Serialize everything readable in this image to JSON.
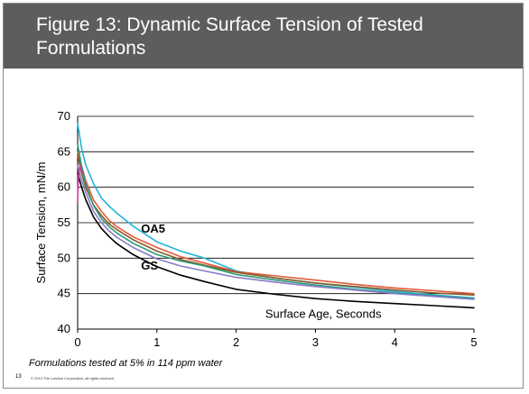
{
  "slide": {
    "title": "Figure 13: Dynamic Surface Tension of Tested Formulations",
    "footnote": "Formulations tested at 5% in 114 ppm water",
    "page_number": "13",
    "copyright": "© 2013 The Lubrizol Corporation, all rights reserved."
  },
  "chart_data": {
    "type": "line",
    "title": "",
    "xlabel": "Surface Age, Seconds",
    "ylabel": "Surface Tension, mN/m",
    "xlim": [
      0,
      5
    ],
    "ylim": [
      40,
      70
    ],
    "xticks": [
      0,
      1,
      2,
      3,
      4,
      5
    ],
    "yticks": [
      40,
      45,
      50,
      55,
      60,
      65,
      70
    ],
    "grid": "horizontal",
    "annotations": [
      {
        "text": "OA5",
        "x": 0.8,
        "y": 53.6
      },
      {
        "text": "GS",
        "x": 0.8,
        "y": 48.4
      }
    ],
    "series": [
      {
        "color": "#000000",
        "x": [
          0,
          0.05,
          0.1,
          0.2,
          0.3,
          0.4,
          0.5,
          0.7,
          1.0,
          1.3,
          1.6,
          2.0,
          2.5,
          3.0,
          3.5,
          4.0,
          4.5,
          5.0
        ],
        "y": [
          62.0,
          60.0,
          58.3,
          55.8,
          54.2,
          53.0,
          52.0,
          50.5,
          48.8,
          47.6,
          46.7,
          45.6,
          44.9,
          44.3,
          43.9,
          43.6,
          43.3,
          43.0
        ]
      },
      {
        "color": "#22b5d8",
        "x": [
          0,
          0.05,
          0.1,
          0.2,
          0.3,
          0.4,
          0.5,
          0.7,
          1.0,
          1.3,
          1.6,
          2.0,
          2.5,
          3.0,
          3.5,
          4.0,
          4.5,
          5.0
        ],
        "y": [
          69.0,
          65.5,
          63.2,
          60.5,
          58.5,
          57.3,
          56.3,
          54.5,
          52.3,
          51.0,
          50.0,
          48.2,
          47.2,
          46.5,
          45.9,
          45.3,
          44.8,
          44.4
        ]
      },
      {
        "color": "#e05a3a",
        "x": [
          0,
          0.05,
          0.1,
          0.2,
          0.3,
          0.4,
          0.5,
          0.7,
          1.0,
          1.3,
          1.6,
          2.0,
          2.5,
          3.0,
          3.5,
          4.0,
          4.5,
          5.0
        ],
        "y": [
          65.0,
          63.0,
          61.0,
          58.2,
          56.6,
          55.3,
          54.4,
          53.0,
          51.5,
          50.2,
          49.3,
          48.1,
          47.5,
          46.9,
          46.3,
          45.8,
          45.4,
          45.0
        ]
      },
      {
        "color": "#8a5a2a",
        "x": [
          0,
          0.05,
          0.1,
          0.2,
          0.3,
          0.4,
          0.5,
          0.7,
          1.0,
          1.3,
          1.6,
          2.0,
          2.5,
          3.0,
          3.5,
          4.0,
          4.5,
          5.0
        ],
        "y": [
          64.5,
          62.0,
          60.0,
          57.5,
          56.0,
          54.8,
          54.0,
          52.6,
          51.0,
          49.8,
          49.0,
          48.0,
          47.2,
          46.5,
          46.0,
          45.5,
          45.1,
          44.8
        ]
      },
      {
        "color": "#2a9a7a",
        "x": [
          0,
          0.05,
          0.1,
          0.2,
          0.3,
          0.4,
          0.5,
          0.7,
          1.0,
          1.3,
          1.6,
          2.0,
          2.5,
          3.0,
          3.5,
          4.0,
          4.5,
          5.0
        ],
        "y": [
          66.0,
          63.0,
          60.5,
          57.4,
          55.6,
          54.4,
          53.5,
          52.1,
          50.5,
          49.6,
          48.9,
          47.7,
          46.9,
          46.2,
          45.6,
          45.1,
          44.7,
          44.3
        ]
      },
      {
        "color": "#8a7ac8",
        "x": [
          0,
          0.05,
          0.1,
          0.2,
          0.3,
          0.4,
          0.5,
          0.7,
          1.0,
          1.3,
          1.6,
          2.0,
          2.5,
          3.0,
          3.5,
          4.0,
          4.5,
          5.0
        ],
        "y": [
          63.0,
          61.0,
          59.3,
          56.6,
          55.0,
          53.8,
          52.9,
          51.5,
          49.9,
          48.9,
          48.2,
          47.3,
          46.6,
          46.0,
          45.5,
          45.0,
          44.6,
          44.2
        ]
      },
      {
        "color": "#cc3aa0",
        "x": [
          0,
          0.01,
          0.03,
          0.06
        ],
        "y": [
          58.0,
          61.5,
          63.0,
          62.0
        ]
      }
    ]
  }
}
